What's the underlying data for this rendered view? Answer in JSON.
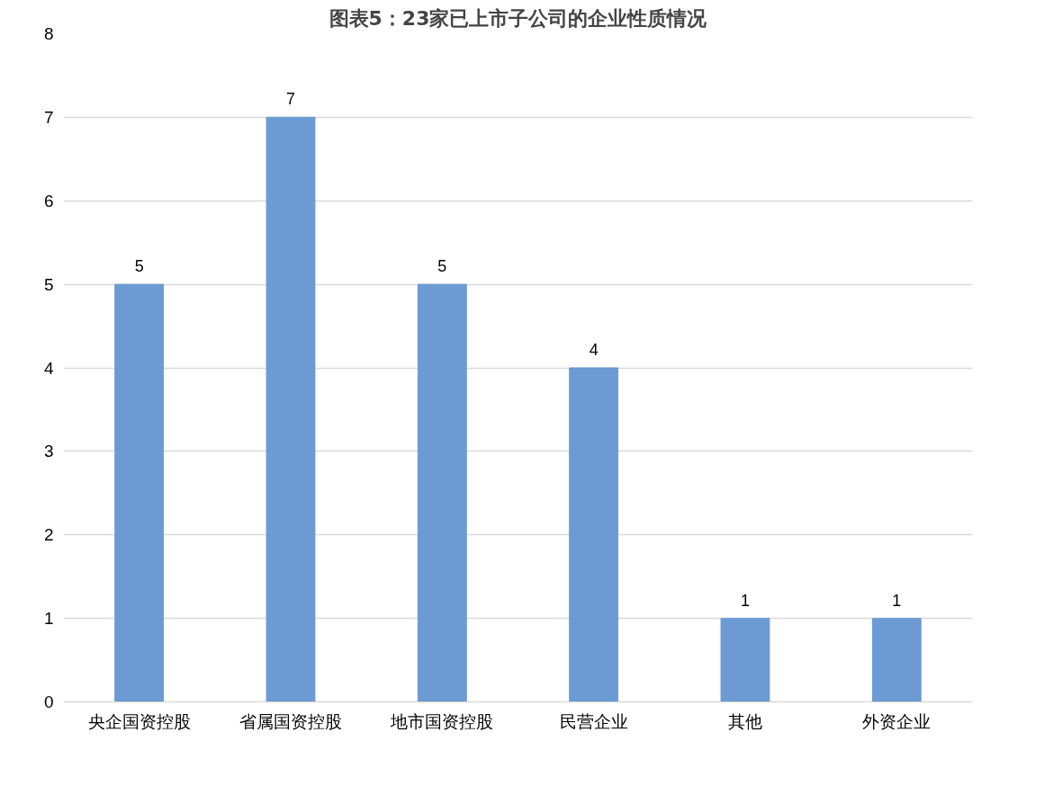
{
  "chart_data": {
    "type": "bar",
    "title": "图表5：23家已上市子公司的企业性质情况",
    "categories": [
      "央企国资控股",
      "省属国资控股",
      "地市国资控股",
      "民营企业",
      "其他",
      "外资企业"
    ],
    "values": [
      5,
      7,
      5,
      4,
      1,
      1
    ],
    "color": "#6b9bd2",
    "ylim": [
      0,
      8
    ],
    "yticks": [
      0,
      1,
      2,
      3,
      4,
      5,
      6,
      7,
      8
    ],
    "grid": "y",
    "data_labels": true
  }
}
